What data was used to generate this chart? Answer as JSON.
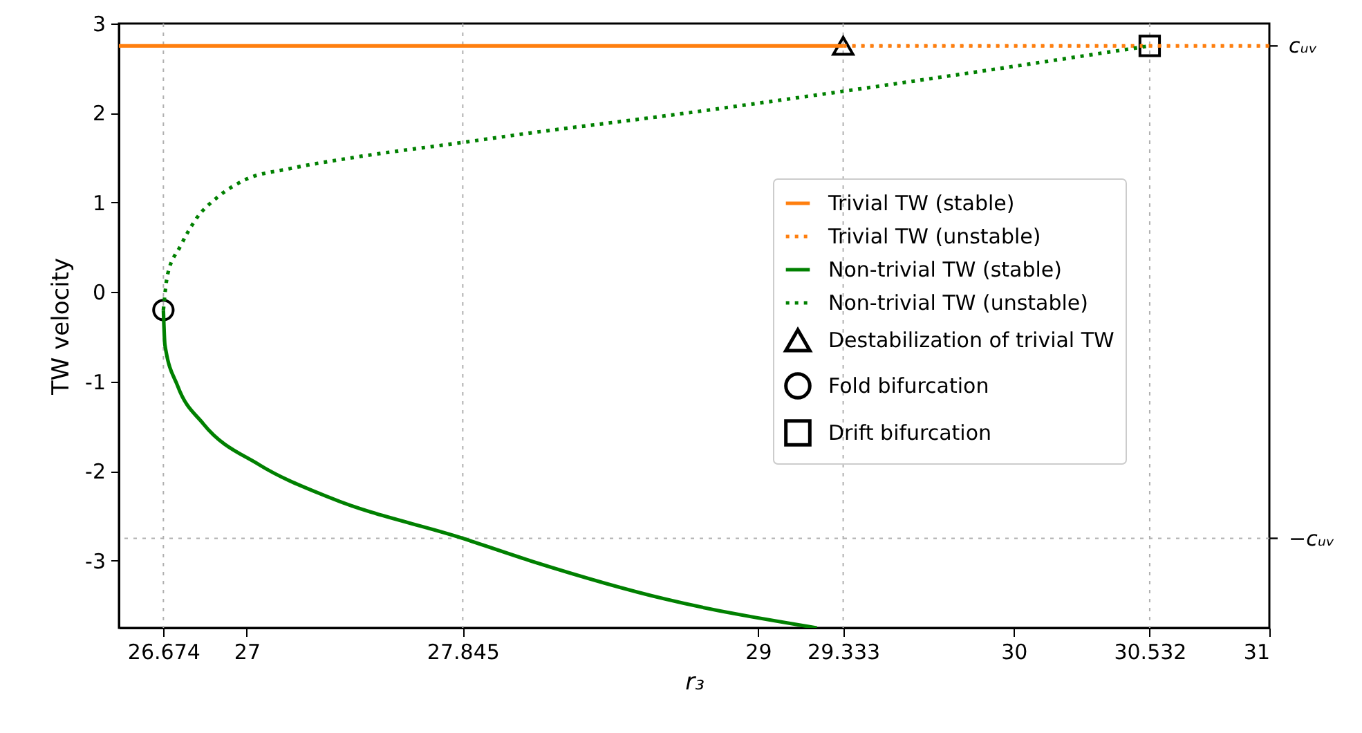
{
  "chart_data": {
    "type": "line",
    "xlabel": "r₃",
    "ylabel": "TW velocity",
    "xlim": [
      26.5,
      31
    ],
    "xticks": [
      26.674,
      27,
      27.845,
      29,
      29.333,
      30,
      30.532,
      31
    ],
    "ylim": [
      -3.75,
      3
    ],
    "yticks": [
      -3,
      -2,
      -1,
      0,
      1,
      2,
      3
    ],
    "grid": false,
    "legend": "right",
    "ref_lines": [
      {
        "axis": "x",
        "value": 26.674,
        "color": "#b0b0b0",
        "line_style": "dotted"
      },
      {
        "axis": "x",
        "value": 27.845,
        "color": "#b0b0b0",
        "line_style": "dotted"
      },
      {
        "axis": "x",
        "value": 29.333,
        "color": "#b0b0b0",
        "line_style": "dotted"
      },
      {
        "axis": "x",
        "value": 30.532,
        "color": "#b0b0b0",
        "line_style": "dotted"
      },
      {
        "axis": "y",
        "value": 2.75,
        "label": "cᵤᵥ",
        "color": "#b0b0b0",
        "line_style": "dotted"
      },
      {
        "axis": "y",
        "value": -2.75,
        "label": "−cᵤᵥ",
        "color": "#b0b0b0",
        "line_style": "dotted"
      }
    ],
    "series": [
      {
        "name": "Trivial TW (stable)",
        "color": "#ff7f0e",
        "line_style": "solid",
        "x": [
          26.5,
          29.333
        ],
        "values": [
          2.75,
          2.75
        ]
      },
      {
        "name": "Trivial TW (unstable)",
        "color": "#ff7f0e",
        "line_style": "dotted",
        "x": [
          29.333,
          31
        ],
        "values": [
          2.75,
          2.75
        ]
      },
      {
        "name": "Non-trivial TW (stable)",
        "color": "#008000",
        "line_style": "solid",
        "x": [
          26.674,
          26.68,
          26.73,
          26.83,
          27.05,
          27.32,
          27.845,
          28.12,
          28.64,
          29.23
        ],
        "values": [
          -0.2,
          -0.59,
          -1.05,
          -1.47,
          -1.93,
          -2.29,
          -2.75,
          -3.01,
          -3.43,
          -3.75
        ]
      },
      {
        "name": "Non-trivial TW (unstable)",
        "color": "#008000",
        "line_style": "dotted",
        "x": [
          26.674,
          26.69,
          26.74,
          26.8,
          26.89,
          26.99,
          27.17,
          27.41,
          27.84,
          28.09,
          28.64,
          29.3,
          30.532
        ],
        "values": [
          -0.2,
          0.19,
          0.51,
          0.81,
          1.07,
          1.25,
          1.38,
          1.5,
          1.67,
          1.77,
          1.97,
          2.23,
          2.75
        ]
      },
      {
        "name": "Destabilization of trivial TW",
        "type": "scatter",
        "marker": "triangle",
        "color": "#000000",
        "x": [
          29.333
        ],
        "values": [
          2.75
        ]
      },
      {
        "name": "Fold bifurcation",
        "type": "scatter",
        "marker": "circle",
        "color": "#000000",
        "x": [
          26.674
        ],
        "values": [
          -0.2
        ]
      },
      {
        "name": "Drift bifurcation",
        "type": "scatter",
        "marker": "square",
        "color": "#000000",
        "x": [
          30.532
        ],
        "values": [
          2.75
        ]
      }
    ]
  }
}
